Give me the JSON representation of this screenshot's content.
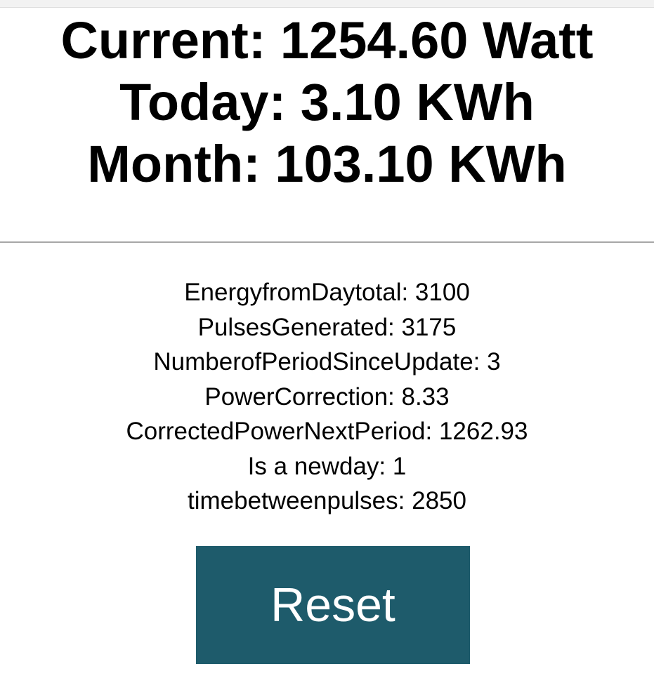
{
  "summary": {
    "current": "Current: 1254.60 Watt",
    "today": "Today: 3.10 KWh",
    "month": "Month: 103.10 KWh"
  },
  "stats": [
    "EnergyfromDaytotal: 3100",
    "PulsesGenerated: 3175",
    "NumberofPeriodSinceUpdate: 3",
    "PowerCorrection: 8.33",
    "CorrectedPowerNextPeriod: 1262.93",
    "Is a newday: 1",
    "timebetweenpulses: 2850"
  ],
  "actions": {
    "reset_label": "Reset"
  },
  "colors": {
    "reset_button_bg": "#1e5b6b",
    "reset_button_text": "#ffffff",
    "divider": "#a7a7a7"
  }
}
